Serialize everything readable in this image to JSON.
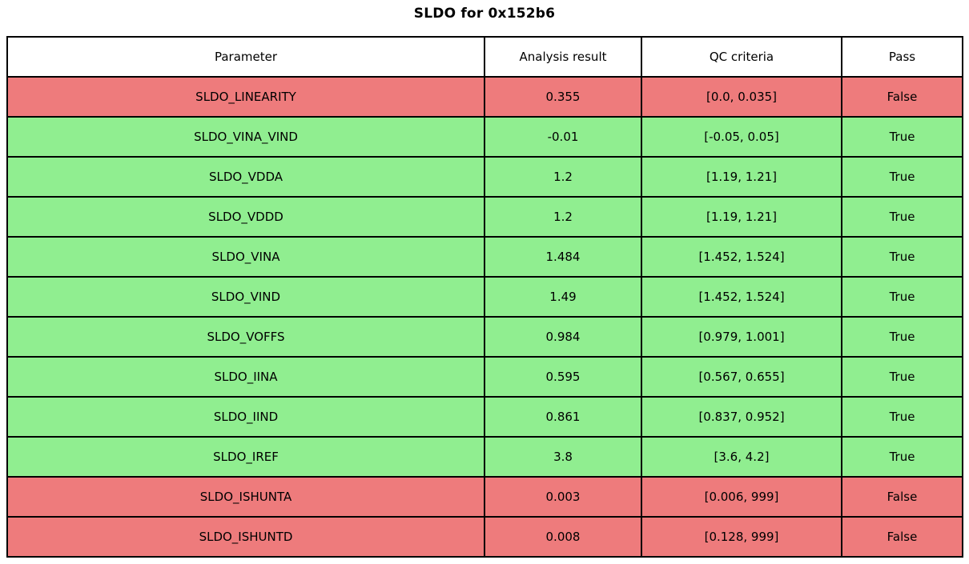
{
  "title": "SLDO for 0x152b6",
  "colors": {
    "pass_row_bg": "#90ee90",
    "fail_row_bg": "#ee7b7c",
    "border": "#000000",
    "header_bg": "#ffffff",
    "text": "#000000"
  },
  "chart_data": {
    "type": "table",
    "title": "SLDO for 0x152b6",
    "columns": [
      "Parameter",
      "Analysis result",
      "QC criteria",
      "Pass"
    ],
    "rows": [
      {
        "parameter": "SLDO_LINEARITY",
        "result": "0.355",
        "criteria": "[0.0, 0.035]",
        "pass": "False",
        "status": "fail"
      },
      {
        "parameter": "SLDO_VINA_VIND",
        "result": "-0.01",
        "criteria": "[-0.05, 0.05]",
        "pass": "True",
        "status": "pass"
      },
      {
        "parameter": "SLDO_VDDA",
        "result": "1.2",
        "criteria": "[1.19, 1.21]",
        "pass": "True",
        "status": "pass"
      },
      {
        "parameter": "SLDO_VDDD",
        "result": "1.2",
        "criteria": "[1.19, 1.21]",
        "pass": "True",
        "status": "pass"
      },
      {
        "parameter": "SLDO_VINA",
        "result": "1.484",
        "criteria": "[1.452, 1.524]",
        "pass": "True",
        "status": "pass"
      },
      {
        "parameter": "SLDO_VIND",
        "result": "1.49",
        "criteria": "[1.452, 1.524]",
        "pass": "True",
        "status": "pass"
      },
      {
        "parameter": "SLDO_VOFFS",
        "result": "0.984",
        "criteria": "[0.979, 1.001]",
        "pass": "True",
        "status": "pass"
      },
      {
        "parameter": "SLDO_IINA",
        "result": "0.595",
        "criteria": "[0.567, 0.655]",
        "pass": "True",
        "status": "pass"
      },
      {
        "parameter": "SLDO_IIND",
        "result": "0.861",
        "criteria": "[0.837, 0.952]",
        "pass": "True",
        "status": "pass"
      },
      {
        "parameter": "SLDO_IREF",
        "result": "3.8",
        "criteria": "[3.6, 4.2]",
        "pass": "True",
        "status": "pass"
      },
      {
        "parameter": "SLDO_ISHUNTA",
        "result": "0.003",
        "criteria": "[0.006, 999]",
        "pass": "False",
        "status": "fail"
      },
      {
        "parameter": "SLDO_ISHUNTD",
        "result": "0.008",
        "criteria": "[0.128, 999]",
        "pass": "False",
        "status": "fail"
      }
    ]
  }
}
